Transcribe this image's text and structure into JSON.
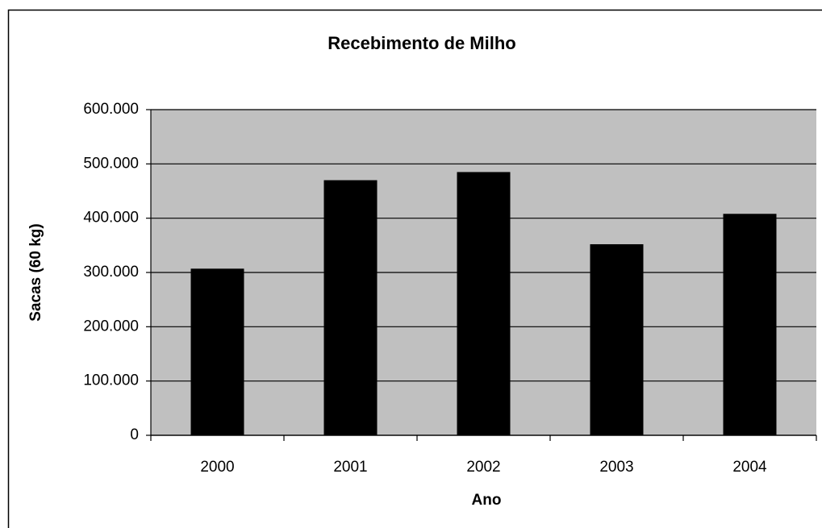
{
  "chart_data": {
    "type": "bar",
    "title": "Recebimento de Milho",
    "x_label": "Ano",
    "y_label": "Sacas (60 kg)",
    "categories": [
      "2000",
      "2001",
      "2002",
      "2003",
      "2004"
    ],
    "values": [
      307000,
      470000,
      485000,
      352000,
      408000
    ],
    "color": "#000000",
    "plot_background": "#c0c0c0",
    "ylim": [
      0,
      600000
    ],
    "yticks": [
      0,
      {
        "value": 100000,
        "label": "100.000"
      },
      {
        "value": 200000,
        "label": "200.000"
      },
      {
        "value": 300000,
        "label": "300.000"
      },
      {
        "value": 400000,
        "label": "400.000"
      },
      {
        "value": 500000,
        "label": "500.000"
      },
      {
        "value": 600000,
        "label": "600.000"
      }
    ],
    "grid": true
  }
}
